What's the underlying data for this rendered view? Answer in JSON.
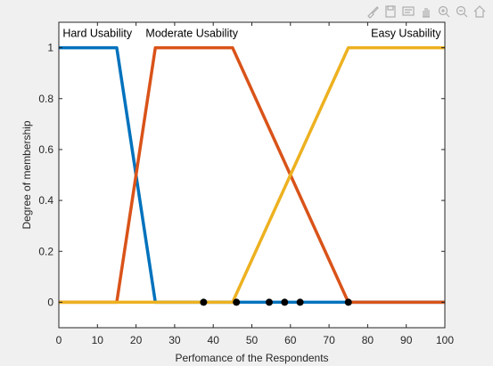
{
  "toolbar": {
    "icons": [
      "brush-icon",
      "save-icon",
      "data-tips-icon",
      "pan-icon",
      "zoom-in-icon",
      "zoom-out-icon",
      "home-icon"
    ]
  },
  "chart_data": {
    "type": "line",
    "title": "",
    "xlabel": "Perfomance of the Respondents",
    "ylabel": "Degree of membership",
    "xlim": [
      0,
      100
    ],
    "ylim": [
      -0.1,
      1.1
    ],
    "xticks": [
      0,
      10,
      20,
      30,
      40,
      50,
      60,
      70,
      80,
      90,
      100
    ],
    "yticks": [
      0,
      0.2,
      0.4,
      0.6,
      0.8,
      1
    ],
    "ytick_labels": [
      "0",
      "0.2",
      "0.4",
      "0.6",
      "0.8",
      "1"
    ],
    "grid": false,
    "series": [
      {
        "color": "#0072BD",
        "x": [
          0,
          15,
          25,
          100
        ],
        "y": [
          1,
          1,
          0,
          0
        ]
      },
      {
        "color": "#D95319",
        "x": [
          0,
          15,
          25,
          45,
          75,
          100
        ],
        "y": [
          0,
          0,
          1,
          1,
          0,
          0
        ]
      },
      {
        "color": "#EDB120",
        "x": [
          0,
          45,
          75,
          100
        ],
        "y": [
          0,
          0,
          1,
          1
        ]
      }
    ],
    "points": {
      "color": "#000000",
      "x": [
        37.5,
        46,
        54.5,
        58.5,
        62.5,
        75
      ],
      "y": [
        0,
        0,
        0,
        0,
        0,
        0
      ]
    },
    "annotations": [
      {
        "text": "Hard Usability",
        "x": 1,
        "y": 1.042,
        "anchor": "start"
      },
      {
        "text": "Moderate Usability",
        "x": 22.5,
        "y": 1.042,
        "anchor": "start"
      },
      {
        "text": "Easy Usability",
        "x": 99,
        "y": 1.042,
        "anchor": "end"
      }
    ]
  }
}
